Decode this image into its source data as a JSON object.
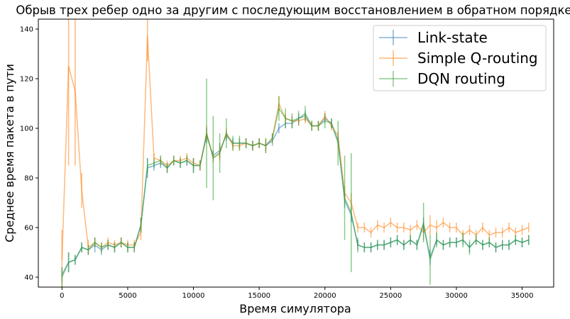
{
  "chart_data": {
    "type": "line",
    "title": "Обрыв трех ребер одно за другим с последующим восстановлением в обратном порядке",
    "xlabel": "Время симулятора",
    "ylabel": "Среднее время пакета в пути",
    "xlim": [
      -1800,
      37400
    ],
    "ylim": [
      36,
      144
    ],
    "xticks": [
      0,
      5000,
      10000,
      15000,
      20000,
      25000,
      30000,
      35000
    ],
    "yticks": [
      40,
      60,
      80,
      100,
      120,
      140
    ],
    "legend_position": "top-right",
    "grid": false,
    "x": [
      0,
      500,
      1000,
      1500,
      2000,
      2500,
      3000,
      3500,
      4000,
      4500,
      5000,
      5500,
      6000,
      6500,
      7000,
      7500,
      8000,
      8500,
      9000,
      9500,
      10000,
      10500,
      11000,
      11500,
      12000,
      12500,
      13000,
      13500,
      14000,
      14500,
      15000,
      15500,
      16000,
      16500,
      17000,
      17500,
      18000,
      18500,
      19000,
      19500,
      20000,
      20500,
      21000,
      21500,
      22000,
      22500,
      23000,
      23500,
      24000,
      24500,
      25000,
      25500,
      26000,
      26500,
      27000,
      27500,
      28000,
      28500,
      29000,
      29500,
      30000,
      30500,
      31000,
      31500,
      32000,
      32500,
      33000,
      33500,
      34000,
      34500,
      35000,
      35500
    ],
    "series": [
      {
        "name": "Link-state",
        "color": "#1f77b4",
        "values": [
          41,
          46,
          47,
          52,
          51,
          53,
          51,
          53,
          52,
          54,
          52,
          52,
          61,
          84,
          85,
          86,
          84,
          87,
          86,
          87,
          85,
          85,
          97,
          89,
          91,
          97,
          94,
          94,
          94,
          93,
          94,
          93,
          95,
          100,
          102,
          102,
          104,
          105,
          101,
          101,
          104,
          102,
          95,
          71,
          65,
          53,
          52,
          52,
          53,
          53,
          54,
          55,
          53,
          55,
          53,
          61,
          48,
          55,
          53,
          54,
          54,
          55,
          52,
          55,
          53,
          54,
          52,
          53,
          53,
          55,
          54,
          55
        ],
        "errors": [
          3,
          4,
          2,
          2,
          2,
          3,
          2,
          2,
          2,
          2,
          2,
          2,
          3,
          4,
          2,
          2,
          2,
          2,
          2,
          2,
          3,
          2,
          3,
          2,
          3,
          2,
          2,
          2,
          2,
          2,
          2,
          2,
          2,
          2,
          2,
          2,
          2,
          2,
          2,
          2,
          2,
          2,
          2,
          3,
          3,
          2,
          2,
          2,
          2,
          2,
          2,
          2,
          2,
          2,
          2,
          3,
          3,
          2,
          2,
          2,
          2,
          2,
          2,
          2,
          2,
          2,
          2,
          2,
          2,
          2,
          2,
          2
        ]
      },
      {
        "name": "Simple Q-routing",
        "color": "#ff7f0e",
        "values": [
          47,
          125,
          115,
          75,
          52,
          54,
          52,
          54,
          53,
          54,
          53,
          53,
          58,
          137,
          88,
          87,
          85,
          87,
          87,
          88,
          86,
          85,
          98,
          88,
          90,
          98,
          93,
          93,
          94,
          93,
          94,
          93,
          96,
          110,
          104,
          103,
          103,
          104,
          101,
          101,
          105,
          101,
          97,
          74,
          70,
          60,
          60,
          58,
          61,
          60,
          62,
          60,
          60,
          59,
          61,
          58,
          61,
          60,
          62,
          60,
          60,
          57,
          59,
          57,
          60,
          57,
          58,
          58,
          60,
          58,
          59,
          60
        ],
        "errors": [
          12,
          40,
          30,
          7,
          3,
          2,
          2,
          2,
          2,
          2,
          2,
          2,
          3,
          10,
          2,
          2,
          2,
          2,
          2,
          2,
          2,
          2,
          3,
          2,
          3,
          2,
          2,
          2,
          2,
          2,
          2,
          3,
          2,
          3,
          2,
          2,
          2,
          2,
          2,
          2,
          2,
          2,
          2,
          3,
          4,
          2,
          2,
          2,
          2,
          2,
          2,
          2,
          2,
          2,
          2,
          3,
          4,
          3,
          2,
          2,
          2,
          2,
          2,
          2,
          2,
          2,
          2,
          2,
          2,
          2,
          2,
          2
        ]
      },
      {
        "name": "DQN routing",
        "color": "#2ca02c",
        "values": [
          40,
          46,
          47,
          52,
          51,
          54,
          52,
          53,
          52,
          54,
          52,
          52,
          61,
          85,
          86,
          87,
          84,
          87,
          86,
          87,
          85,
          85,
          98,
          88,
          90,
          98,
          94,
          94,
          94,
          93,
          94,
          93,
          96,
          108,
          104,
          103,
          104,
          106,
          101,
          101,
          103,
          102,
          94,
          72,
          66,
          53,
          52,
          52,
          53,
          53,
          54,
          55,
          53,
          55,
          53,
          62,
          47,
          55,
          53,
          54,
          54,
          55,
          52,
          55,
          53,
          54,
          52,
          53,
          53,
          55,
          54,
          55
        ],
        "errors": [
          4,
          4,
          2,
          2,
          2,
          2,
          2,
          2,
          2,
          2,
          2,
          2,
          3,
          3,
          2,
          2,
          2,
          2,
          2,
          2,
          3,
          2,
          22,
          17,
          8,
          6,
          3,
          3,
          2,
          2,
          2,
          3,
          2,
          5,
          4,
          3,
          3,
          3,
          2,
          2,
          3,
          2,
          9,
          17,
          24,
          3,
          2,
          2,
          2,
          2,
          2,
          2,
          2,
          2,
          2,
          8,
          10,
          3,
          2,
          2,
          2,
          3,
          3,
          2,
          2,
          2,
          2,
          2,
          2,
          2,
          2,
          2
        ]
      }
    ]
  }
}
